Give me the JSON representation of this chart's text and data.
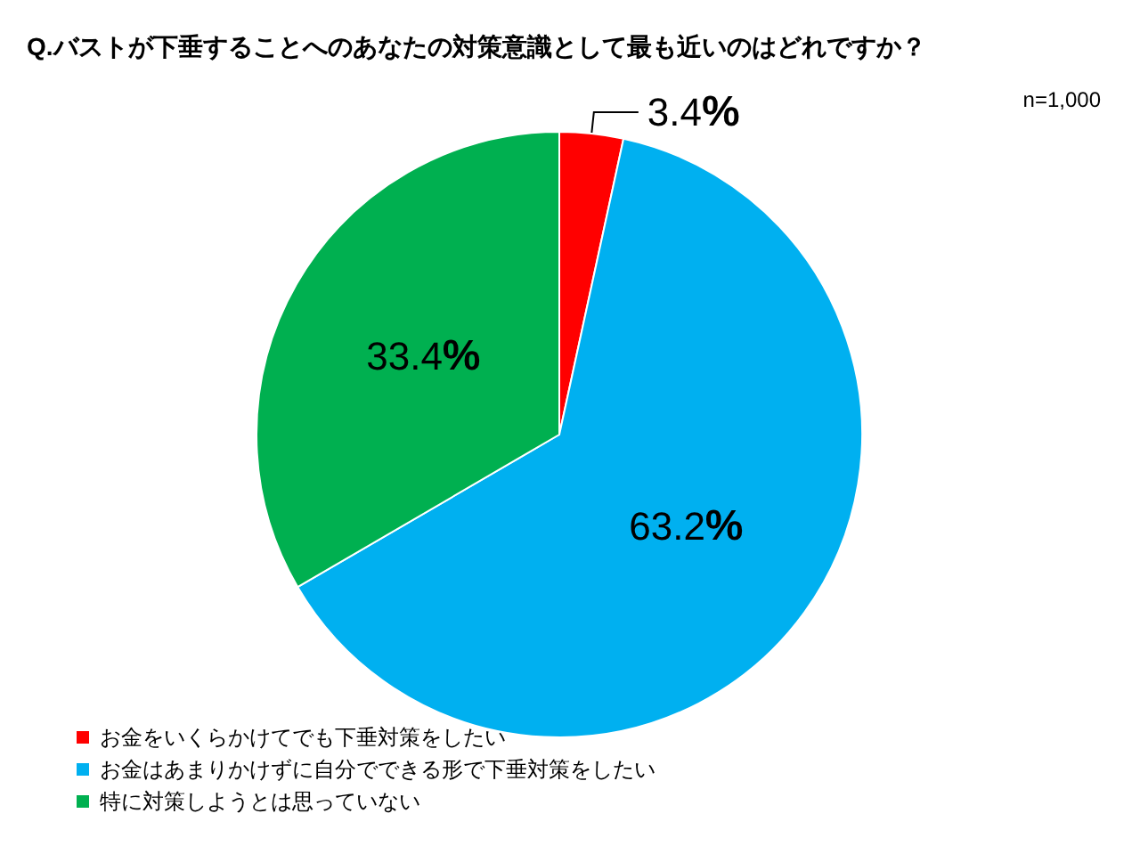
{
  "chart_data": {
    "type": "pie",
    "title": "Q.バストが下垂することへのあなたの対策意識として最も近いのはどれですか？",
    "annotations": [
      "n=1,000"
    ],
    "categories": [
      "お金をいくらかけてでも下垂対策をしたい",
      "お金はあまりかけずに自分でできる形で下垂対策をしたい",
      "特に対策しようとは思っていない"
    ],
    "values": [
      3.4,
      63.2,
      33.4
    ],
    "colors": [
      "#ff0000",
      "#00b0f0",
      "#00b050"
    ],
    "value_labels": [
      "3.4%",
      "63.2%",
      "33.4%"
    ],
    "legend": "bottom left"
  }
}
